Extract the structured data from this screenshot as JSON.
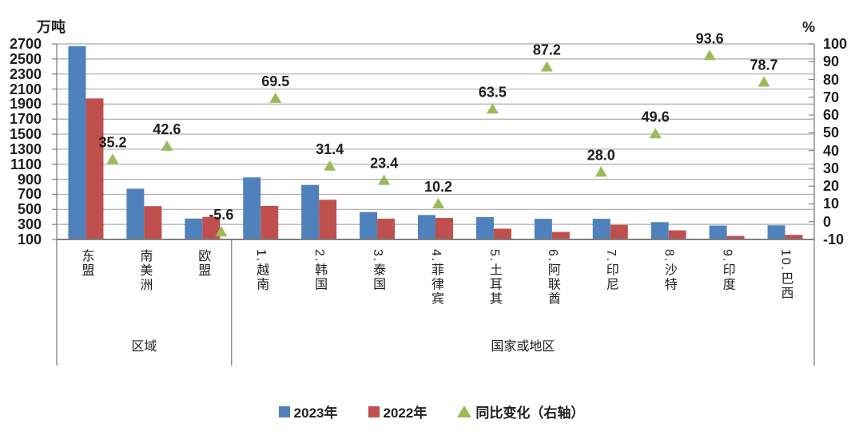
{
  "chart_data": {
    "type": "bar",
    "combo_note": "grouped vertical bars on left axis + triangle markers with data labels on right axis",
    "categories": [
      "东盟",
      "南美洲",
      "欧盟",
      "1.越南",
      "2.韩国",
      "3.泰国",
      "4.菲律宾",
      "5.土耳其",
      "6.阿联酋",
      "7.印尼",
      "8.沙特",
      "9.印度",
      "10.巴西"
    ],
    "category_groups": [
      {
        "label": "区域",
        "from": 0,
        "to": 2
      },
      {
        "label": "国家或地区",
        "from": 3,
        "to": 12
      }
    ],
    "series": [
      {
        "name": "2023年",
        "type": "bar",
        "axis": "left",
        "color": "#4F81BD",
        "values": [
          2670,
          775,
          378,
          925,
          825,
          465,
          425,
          397,
          375,
          375,
          330,
          285,
          288
        ]
      },
      {
        "name": "2022年",
        "type": "bar",
        "axis": "left",
        "color": "#C0504D",
        "values": [
          1975,
          543,
          400,
          546,
          628,
          377,
          386,
          243,
          200,
          293,
          221,
          147,
          161
        ]
      },
      {
        "name": "同比变化（右轴）",
        "type": "scatter-triangle",
        "axis": "right",
        "color": "#9BBB59",
        "values": [
          35.2,
          42.6,
          -5.6,
          69.5,
          31.4,
          23.4,
          10.2,
          63.5,
          87.2,
          28.0,
          49.6,
          93.6,
          78.7
        ],
        "labels": [
          "35.2",
          "42.6",
          "-5.6",
          "69.5",
          "31.4",
          "23.4",
          "10.2",
          "63.5",
          "87.2",
          "28.0",
          "49.6",
          "93.6",
          "78.7"
        ]
      }
    ],
    "left_axis": {
      "title": "万吨",
      "min": 100,
      "max": 2700,
      "step": 200,
      "tick_labels": [
        "2700",
        "2500",
        "2300",
        "2100",
        "1900",
        "1700",
        "1500",
        "1300",
        "1100",
        "900",
        "700",
        "500",
        "300",
        "100"
      ]
    },
    "right_axis": {
      "title": "%",
      "min": -10,
      "max": 100,
      "step": 10,
      "tick_labels": [
        "100",
        "90",
        "80",
        "70",
        "60",
        "50",
        "40",
        "30",
        "20",
        "10",
        "0",
        "-10"
      ]
    },
    "legend": {
      "position": "bottom",
      "entries": [
        "2023年",
        "2022年",
        "同比变化（右轴）"
      ]
    },
    "grid": true
  },
  "colors": {
    "bar_2023": "#4F81BD",
    "bar_2022": "#C0504D",
    "marker_change": "#9BBB59",
    "gridline": "#ABABAB",
    "axis_line": "#808080",
    "text": "#1F1F1F"
  }
}
